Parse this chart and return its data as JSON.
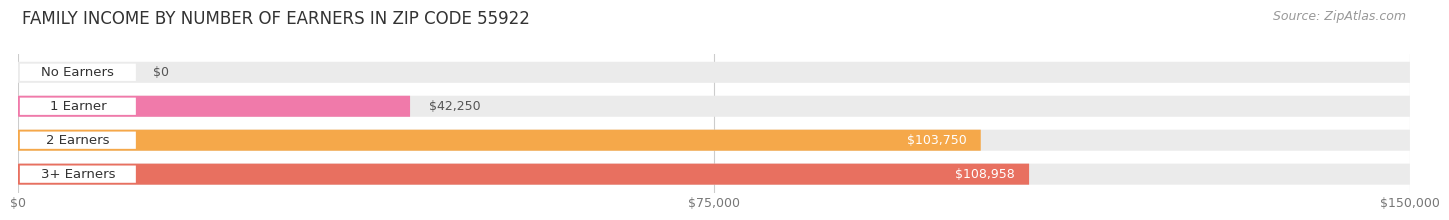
{
  "title": "FAMILY INCOME BY NUMBER OF EARNERS IN ZIP CODE 55922",
  "source": "Source: ZipAtlas.com",
  "categories": [
    "No Earners",
    "1 Earner",
    "2 Earners",
    "3+ Earners"
  ],
  "values": [
    0,
    42250,
    103750,
    108958
  ],
  "bar_colors": [
    "#a8a8d8",
    "#f07aaa",
    "#f5a84a",
    "#e87060"
  ],
  "bar_bg_color": "#ebebeb",
  "value_labels": [
    "$0",
    "$42,250",
    "$103,750",
    "$108,958"
  ],
  "value_label_dark": [
    "$0",
    "$42,250"
  ],
  "xlim": [
    0,
    150000
  ],
  "xtick_values": [
    0,
    75000,
    150000
  ],
  "xtick_labels": [
    "$0",
    "$75,000",
    "$150,000"
  ],
  "background_color": "#ffffff",
  "title_fontsize": 12,
  "source_fontsize": 9,
  "bar_height": 0.62,
  "label_fontsize": 9.5,
  "value_fontsize": 9
}
